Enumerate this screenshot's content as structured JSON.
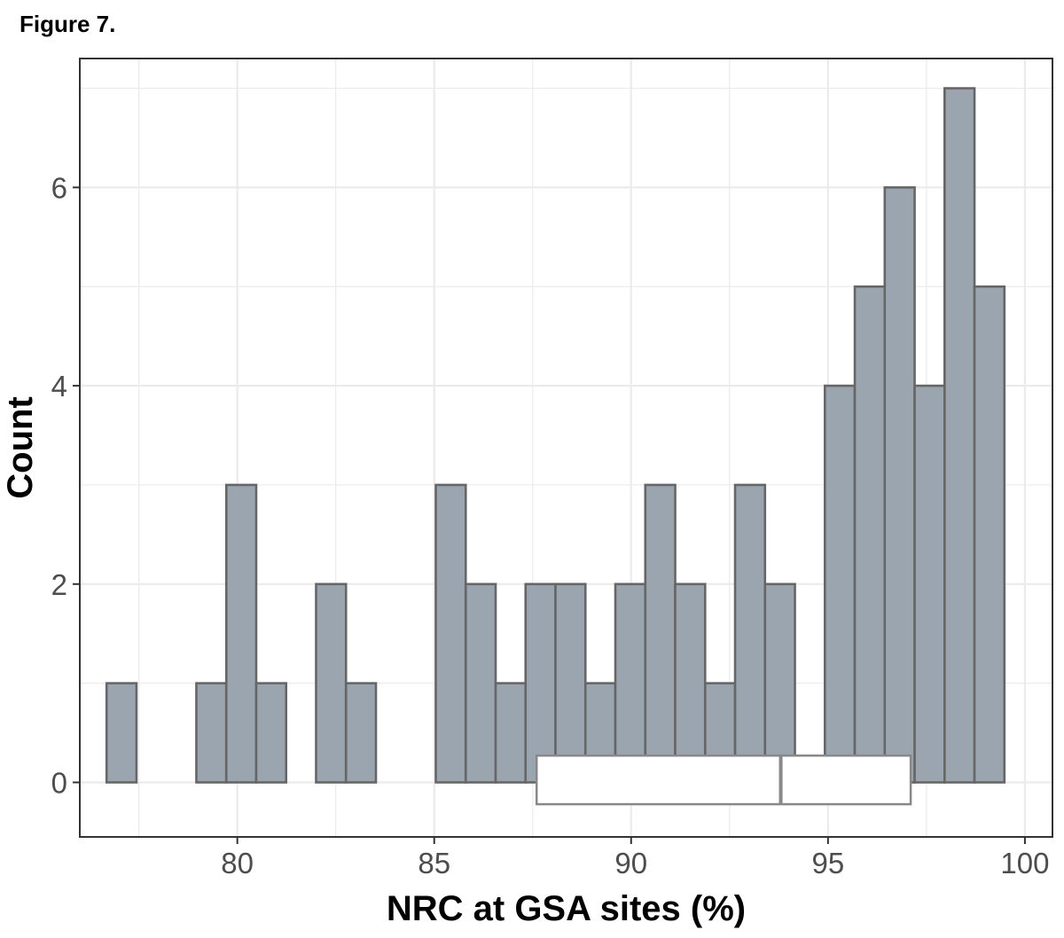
{
  "figure_label": "Figure 7.",
  "colors": {
    "bar_fill": "#9aa5b0",
    "bar_stroke": "#666666",
    "grid": "#ebebeb",
    "panel_border": "#333333",
    "box_fill": "#ffffff",
    "box_stroke": "#888888"
  },
  "chart_data": {
    "type": "bar",
    "subtype": "histogram",
    "title": "",
    "xlabel": "NRC at GSA sites (%)",
    "ylabel": "Count",
    "xlim": [
      76,
      100.7
    ],
    "ylim": [
      -0.55,
      7.3
    ],
    "bin_width": 0.76,
    "x_ticks": [
      80,
      85,
      90,
      95,
      100
    ],
    "y_ticks": [
      0,
      2,
      4,
      6
    ],
    "grid": true,
    "bins": [
      {
        "x": 77.06,
        "count": 1
      },
      {
        "x": 77.82,
        "count": 0
      },
      {
        "x": 78.58,
        "count": 0
      },
      {
        "x": 79.34,
        "count": 1
      },
      {
        "x": 80.1,
        "count": 3
      },
      {
        "x": 80.86,
        "count": 1
      },
      {
        "x": 81.62,
        "count": 0
      },
      {
        "x": 82.38,
        "count": 2
      },
      {
        "x": 83.14,
        "count": 1
      },
      {
        "x": 83.9,
        "count": 0
      },
      {
        "x": 84.66,
        "count": 0
      },
      {
        "x": 85.42,
        "count": 3
      },
      {
        "x": 86.18,
        "count": 2
      },
      {
        "x": 86.94,
        "count": 1
      },
      {
        "x": 87.7,
        "count": 2
      },
      {
        "x": 88.46,
        "count": 2
      },
      {
        "x": 89.22,
        "count": 1
      },
      {
        "x": 89.98,
        "count": 2
      },
      {
        "x": 90.74,
        "count": 3
      },
      {
        "x": 91.5,
        "count": 2
      },
      {
        "x": 92.26,
        "count": 1
      },
      {
        "x": 93.02,
        "count": 3
      },
      {
        "x": 93.78,
        "count": 2
      },
      {
        "x": 95.3,
        "count": 4
      },
      {
        "x": 96.06,
        "count": 5
      },
      {
        "x": 96.82,
        "count": 6
      },
      {
        "x": 97.58,
        "count": 4
      },
      {
        "x": 98.34,
        "count": 7
      },
      {
        "x": 99.1,
        "count": 5
      }
    ],
    "boxplot": {
      "q1": 87.6,
      "median": 93.8,
      "q3": 97.1,
      "y_bottom": -0.22,
      "y_top": 0.27
    }
  }
}
